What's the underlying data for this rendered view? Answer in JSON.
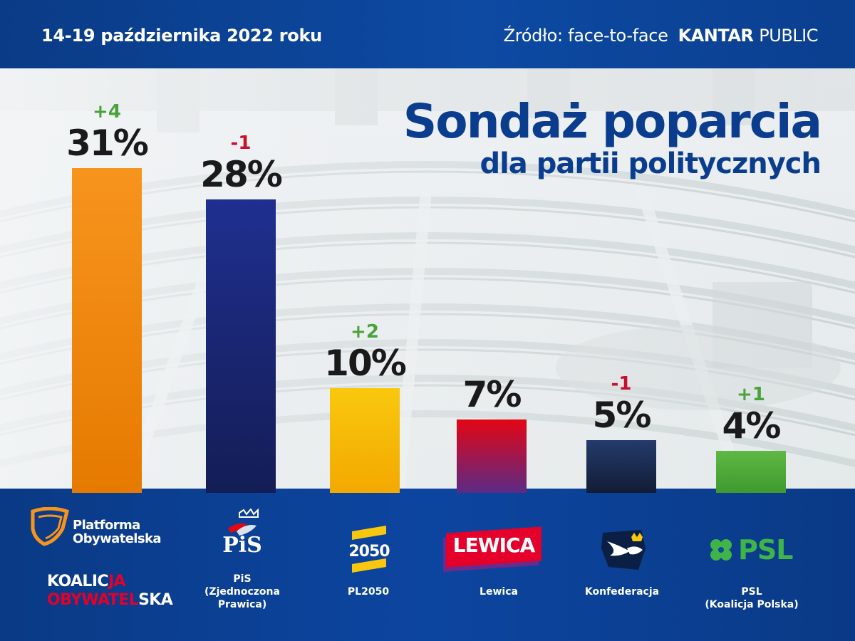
{
  "header": {
    "date": "14-19 października 2022 roku",
    "source_label": "Źródło: face-to-face",
    "brand_bold": "KANTAR",
    "brand_light": "PUBLIC"
  },
  "title": {
    "line1": "Sondaż poparcia",
    "line2": "dla partii politycznych"
  },
  "colors": {
    "header_blue": "#0b3f8f",
    "title_blue": "#0b3d8f",
    "positive": "#4aa33a",
    "negative": "#c8102e"
  },
  "chart_data": {
    "type": "bar",
    "categories": [
      "PO / KO",
      "PiS (Zjednoczona Prawica)",
      "PL2050",
      "Lewica",
      "Konfederacja",
      "PSL (Koalicja Polska)"
    ],
    "values": [
      31,
      28,
      10,
      7,
      5,
      4
    ],
    "value_labels": [
      "31%",
      "28%",
      "10%",
      "7%",
      "5%",
      "4%"
    ],
    "changes": [
      "+4",
      "-1",
      "+2",
      "",
      "-1",
      "+1"
    ],
    "change_sign": [
      "pos",
      "neg",
      "pos",
      "",
      "neg",
      "pos"
    ],
    "ylim": [
      0,
      31
    ],
    "grid": false,
    "legend": "none",
    "bar_colors": [
      [
        "#f7941d",
        "#e67a00"
      ],
      [
        "#1f2f8f",
        "#141d55"
      ],
      [
        "#f9c80e",
        "#f3a900"
      ],
      [
        "#e30613",
        "#5b2a86"
      ],
      [
        "#243b6b",
        "#121c35"
      ],
      [
        "#5fb845",
        "#3e9a2f"
      ]
    ]
  },
  "parties": [
    {
      "label_line1": "",
      "label_line2": "",
      "label_line3": ""
    },
    {
      "label_line1": "PiS",
      "label_line2": "(Zjednoczona",
      "label_line3": "Prawica)"
    },
    {
      "label_line1": "PL2050",
      "label_line2": "",
      "label_line3": ""
    },
    {
      "label_line1": "Lewica",
      "label_line2": "",
      "label_line3": ""
    },
    {
      "label_line1": "Konfederacja",
      "label_line2": "",
      "label_line3": ""
    },
    {
      "label_line1": "PSL",
      "label_line2": "(Koalicja Polska)",
      "label_line3": ""
    }
  ],
  "logos": {
    "po_line1": "Platforma",
    "po_line2": "Obywatelska",
    "ko_part1": "KOALIC",
    "ko_part2": "JA",
    "ko_part3": "OBYWATEL",
    "ko_part4": "SKA",
    "pis": "PiS",
    "pl2050": "2050",
    "lewica": "LEWICA",
    "psl": "PSL",
    "po_icon": "po-heart-icon",
    "pis_icon": "eagle-crown-icon",
    "konfederacja_icon": "eagle-crown-icon",
    "psl_icon": "clover-icon"
  }
}
